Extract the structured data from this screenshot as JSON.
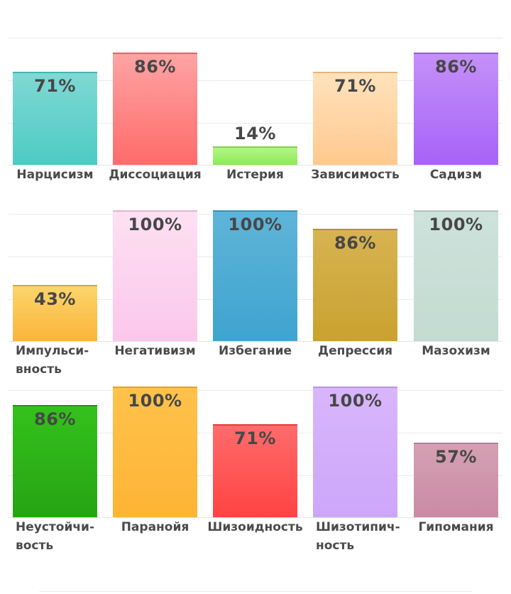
{
  "chart_data": [
    {
      "type": "bar",
      "ylim": [
        0,
        100
      ],
      "grid": true,
      "categories": [
        "Нарцисизм",
        "Диссоциация",
        "Истерия",
        "Зависимость",
        "Садизм"
      ],
      "values": [
        71,
        86,
        14,
        71,
        86
      ],
      "value_labels": [
        "71%",
        "86%",
        "14%",
        "71%",
        "86%"
      ],
      "colors": [
        [
          "#80d8d4",
          "#4ccbc2"
        ],
        [
          "#ffa3a3",
          "#ff6b6b"
        ],
        [
          "#b6f588",
          "#8bea57"
        ],
        [
          "#ffe2bb",
          "#ffc98e"
        ],
        [
          "#c490f8",
          "#a762f8"
        ]
      ]
    },
    {
      "type": "bar",
      "ylim": [
        0,
        100
      ],
      "grid": true,
      "categories": [
        "Импульси-\nвность",
        "Негативизм",
        "Избегание",
        "Депрессия",
        "Мазохизм"
      ],
      "values": [
        43,
        100,
        100,
        86,
        100
      ],
      "value_labels": [
        "43%",
        "100%",
        "100%",
        "86%",
        "100%"
      ],
      "colors": [
        [
          "#fbd56c",
          "#fbb53a"
        ],
        [
          "#fde0f2",
          "#fbc7ec"
        ],
        [
          "#5fb4d8",
          "#3ea4cf"
        ],
        [
          "#d7b352",
          "#c9a22f"
        ],
        [
          "#cde2da",
          "#c3dbd2"
        ]
      ]
    },
    {
      "type": "bar",
      "ylim": [
        0,
        100
      ],
      "grid": true,
      "categories": [
        "Неустойчи-\nвость",
        "Паранойя",
        "Шизоидность",
        "Шизотипич-\nность",
        "Гипомания"
      ],
      "values": [
        86,
        100,
        71,
        100,
        57
      ],
      "value_labels": [
        "86%",
        "100%",
        "71%",
        "100%",
        "57%"
      ],
      "colors": [
        [
          "#34c11c",
          "#26a413"
        ],
        [
          "#ffc24c",
          "#feb434"
        ],
        [
          "#ff6b6b",
          "#ff4343"
        ],
        [
          "#d8b6fb",
          "#cda6fa"
        ],
        [
          "#d5a0b2",
          "#c98ba4"
        ]
      ]
    }
  ]
}
